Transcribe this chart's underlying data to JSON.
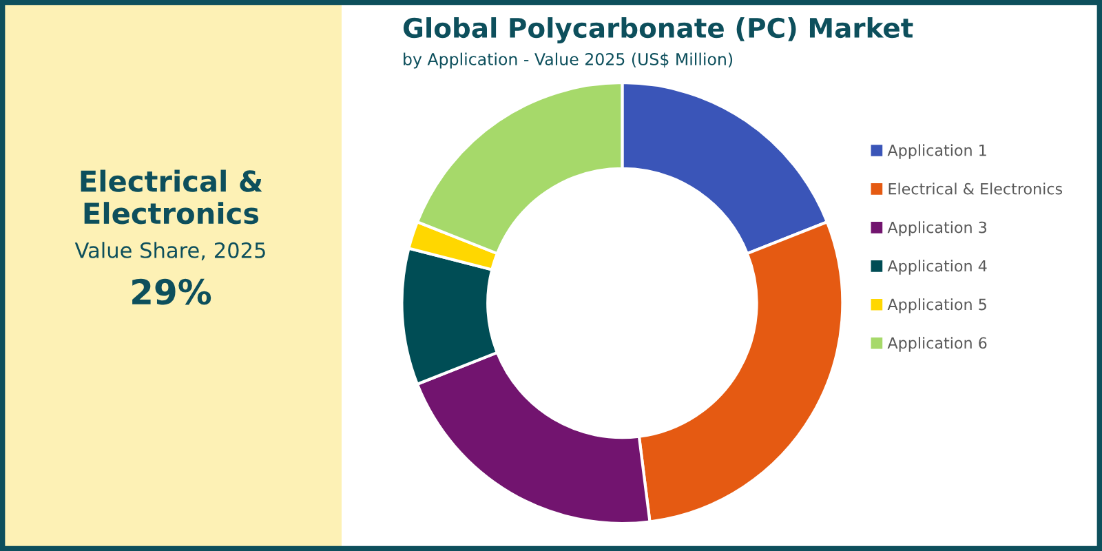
{
  "chart_data": {
    "type": "donut",
    "title": "Global Polycarbonate (PC) Market",
    "subtitle": "by Application - Value 2025 (US$ Million)",
    "categories": [
      "Application 1",
      "Electrical & Electronics",
      "Application 3",
      "Application 4",
      "Application 5",
      "Application 6"
    ],
    "values": [
      19,
      29,
      21,
      10,
      2,
      19
    ],
    "colors": [
      "#3a55b8",
      "#e55a12",
      "#72146f",
      "#004d55",
      "#ffd700",
      "#a6d96a"
    ],
    "legend": "right",
    "annotations": [
      "Electrical & Electronics",
      "Value Share, 2025",
      "29%"
    ]
  }
}
